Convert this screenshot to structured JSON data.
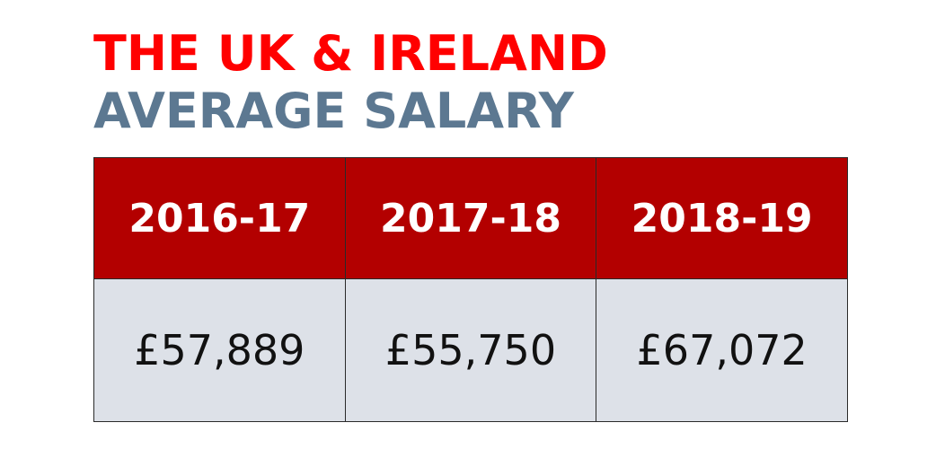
{
  "chart_data": {
    "type": "table",
    "title_line1": "THE UK & IRELAND",
    "title_line2": "AVERAGE SALARY",
    "columns": [
      "2016-17",
      "2017-18",
      "2018-19"
    ],
    "values": [
      57889,
      55750,
      67072
    ],
    "value_labels": [
      "£57,889",
      "£55,750",
      "£67,072"
    ]
  },
  "colors": {
    "title_line1": "#ff0000",
    "title_line2": "#5c7891",
    "header_background": "#b30000",
    "value_background": "#dde1e8"
  }
}
